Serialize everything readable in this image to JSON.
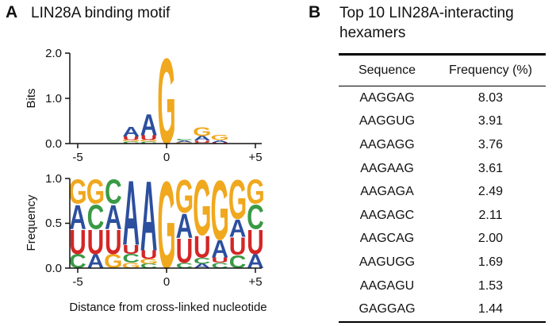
{
  "panel_a": {
    "letter": "A",
    "title": "LIN28A binding motif"
  },
  "panel_b": {
    "letter": "B",
    "title_line1": "Top 10 LIN28A-interacting",
    "title_line2": "hexamers",
    "table": {
      "headers": [
        "Sequence",
        "Frequency (%)"
      ],
      "rows": [
        [
          "AAGGAG",
          "8.03"
        ],
        [
          "AAGGUG",
          "3.91"
        ],
        [
          "AAGAGG",
          "3.76"
        ],
        [
          "AAGAAG",
          "3.61"
        ],
        [
          "AAGAGA",
          "2.49"
        ],
        [
          "AAGAGC",
          "2.11"
        ],
        [
          "AAGCAG",
          "2.00"
        ],
        [
          "AAGUGG",
          "1.69"
        ],
        [
          "AAGAGU",
          "1.53"
        ],
        [
          "GAGGAG",
          "1.44"
        ]
      ]
    }
  },
  "colors": {
    "A": "#2c4f9e",
    "C": "#3a9a46",
    "G": "#f0a81e",
    "U": "#d42626"
  },
  "chart_data": [
    {
      "type": "sequence-logo",
      "ylabel": "Bits",
      "xlabel": "",
      "ylim": [
        0,
        2
      ],
      "yticks": [
        "0.0",
        "1.0",
        "2.0"
      ],
      "xticks": [
        "-5",
        "0",
        "+5"
      ],
      "positions": [
        -5,
        -4,
        -3,
        -2,
        -1,
        0,
        1,
        2,
        3,
        4,
        5
      ],
      "stacks": [
        [],
        [],
        [],
        [
          [
            "C",
            0.04
          ],
          [
            "G",
            0.04
          ],
          [
            "U",
            0.08
          ],
          [
            "A",
            0.22
          ]
        ],
        [
          [
            "C",
            0.04
          ],
          [
            "G",
            0.04
          ],
          [
            "U",
            0.1
          ],
          [
            "A",
            0.48
          ]
        ],
        [
          [
            "G",
            1.95
          ]
        ],
        [
          [
            "G",
            0.03
          ],
          [
            "A",
            0.04
          ],
          [
            "C",
            0.03
          ]
        ],
        [
          [
            "C",
            0.02
          ],
          [
            "U",
            0.05
          ],
          [
            "A",
            0.1
          ],
          [
            "G",
            0.2
          ]
        ],
        [
          [
            "U",
            0.03
          ],
          [
            "A",
            0.05
          ],
          [
            "G",
            0.12
          ]
        ],
        [],
        []
      ]
    },
    {
      "type": "sequence-logo",
      "ylabel": "Frequency",
      "xlabel": "Distance from cross-linked nucleotide",
      "ylim": [
        0,
        1
      ],
      "yticks": [
        "0.0",
        "0.5",
        "1.0"
      ],
      "xticks": [
        "-5",
        "0",
        "+5"
      ],
      "positions": [
        -5,
        -4,
        -3,
        -2,
        -1,
        0,
        1,
        2,
        3,
        4,
        5
      ],
      "stacks": [
        [
          [
            "C",
            0.16
          ],
          [
            "U",
            0.28
          ],
          [
            "A",
            0.28
          ],
          [
            "G",
            0.28
          ]
        ],
        [
          [
            "A",
            0.16
          ],
          [
            "U",
            0.28
          ],
          [
            "C",
            0.28
          ],
          [
            "G",
            0.28
          ]
        ],
        [
          [
            "G",
            0.16
          ],
          [
            "U",
            0.28
          ],
          [
            "A",
            0.28
          ],
          [
            "C",
            0.28
          ]
        ],
        [
          [
            "G",
            0.06
          ],
          [
            "C",
            0.1
          ],
          [
            "U",
            0.1
          ],
          [
            "A",
            0.74
          ]
        ],
        [
          [
            "C",
            0.05
          ],
          [
            "G",
            0.05
          ],
          [
            "U",
            0.1
          ],
          [
            "A",
            0.8
          ]
        ],
        [
          [
            "G",
            1.0
          ]
        ],
        [
          [
            "C",
            0.06
          ],
          [
            "U",
            0.28
          ],
          [
            "A",
            0.28
          ],
          [
            "G",
            0.38
          ]
        ],
        [
          [
            "A",
            0.05
          ],
          [
            "C",
            0.07
          ],
          [
            "U",
            0.25
          ],
          [
            "G",
            0.63
          ]
        ],
        [
          [
            "C",
            0.06
          ],
          [
            "U",
            0.06
          ],
          [
            "A",
            0.2
          ],
          [
            "G",
            0.68
          ]
        ],
        [
          [
            "C",
            0.15
          ],
          [
            "U",
            0.2
          ],
          [
            "A",
            0.2
          ],
          [
            "G",
            0.45
          ]
        ],
        [
          [
            "A",
            0.16
          ],
          [
            "U",
            0.28
          ],
          [
            "C",
            0.28
          ],
          [
            "G",
            0.28
          ]
        ]
      ]
    }
  ]
}
